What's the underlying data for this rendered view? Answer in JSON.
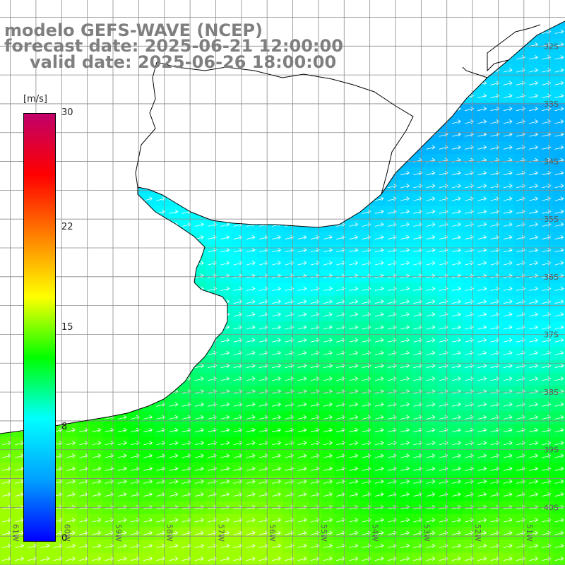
{
  "title": {
    "line1": "modelo GEFS-WAVE (NCEP)",
    "line2": "forecast date: 2025-06-21 12:00:00",
    "line3": "valid date: 2025-06-26 18:00:00"
  },
  "colorbar": {
    "unit": "[m/s]",
    "ticks": [
      {
        "label": "30",
        "value": 30
      },
      {
        "label": "22",
        "value": 22
      },
      {
        "label": "15",
        "value": 15
      },
      {
        "label": "8",
        "value": 8
      },
      {
        "label": "0",
        "value": 0
      }
    ],
    "min": 0,
    "max": 30,
    "colors": [
      "#0000ff",
      "#00a0ff",
      "#00ffff",
      "#00ff00",
      "#ffff00",
      "#ff8000",
      "#ff0000",
      "#c0006a"
    ]
  },
  "map": {
    "lon_range": [
      -61.2,
      -50.2
    ],
    "lat_range": [
      -41.0,
      -31.2
    ],
    "lon_labels": [
      "61W",
      "60W",
      "59W",
      "58W",
      "57W",
      "56W",
      "55W",
      "54W",
      "53W",
      "52W",
      "51W"
    ],
    "lat_labels": [
      "32S",
      "33S",
      "34S",
      "35S",
      "36S",
      "37S",
      "38S",
      "39S",
      "40S"
    ],
    "land_color": "#ffffff",
    "grid_color": "#8a8a8a",
    "arrow_color": "#ffffff",
    "wind_direction": "east-northeast"
  }
}
